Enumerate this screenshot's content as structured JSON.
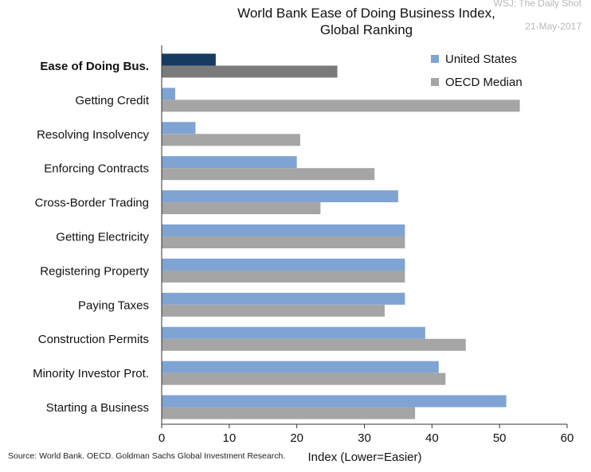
{
  "watermark": {
    "source": "WSJ: The Daily Shot",
    "date": "21-May-2017"
  },
  "colors": {
    "us": "#7fa4d3",
    "oecd": "#a5a5a5",
    "us_highlight": "#163a60",
    "oecd_highlight": "#7b7b7b"
  },
  "source_note": "Source: World Bank. OECD. Goldman Sachs Global Investment Research.",
  "chart_data": {
    "type": "bar",
    "orientation": "horizontal",
    "title": "World Bank Ease of Doing Business Index, Global Ranking",
    "title_lines": [
      "World Bank Ease of Doing Business Index,",
      "Global Ranking"
    ],
    "xlabel": "Index (Lower=Easier)",
    "xlim": [
      0,
      60
    ],
    "xticks": [
      0,
      10,
      20,
      30,
      40,
      50,
      60
    ],
    "grid": false,
    "legend_position": "top-right",
    "categories": [
      "Ease of Doing Bus.",
      "Getting Credit",
      "Resolving Insolvency",
      "Enforcing Contracts",
      "Cross-Border Trading",
      "Getting Electricity",
      "Registering Property",
      "Paying Taxes",
      "Construction Permits",
      "Minority Investor Prot.",
      "Starting a Business"
    ],
    "highlight_category": "Ease of Doing Bus.",
    "series": [
      {
        "name": "United States",
        "values": [
          8,
          2,
          5,
          20,
          35,
          36,
          36,
          36,
          39,
          41,
          51
        ]
      },
      {
        "name": "OECD Median",
        "values": [
          26,
          53,
          20.5,
          31.5,
          23.5,
          36,
          36,
          33,
          45,
          42,
          37.5
        ]
      }
    ]
  }
}
